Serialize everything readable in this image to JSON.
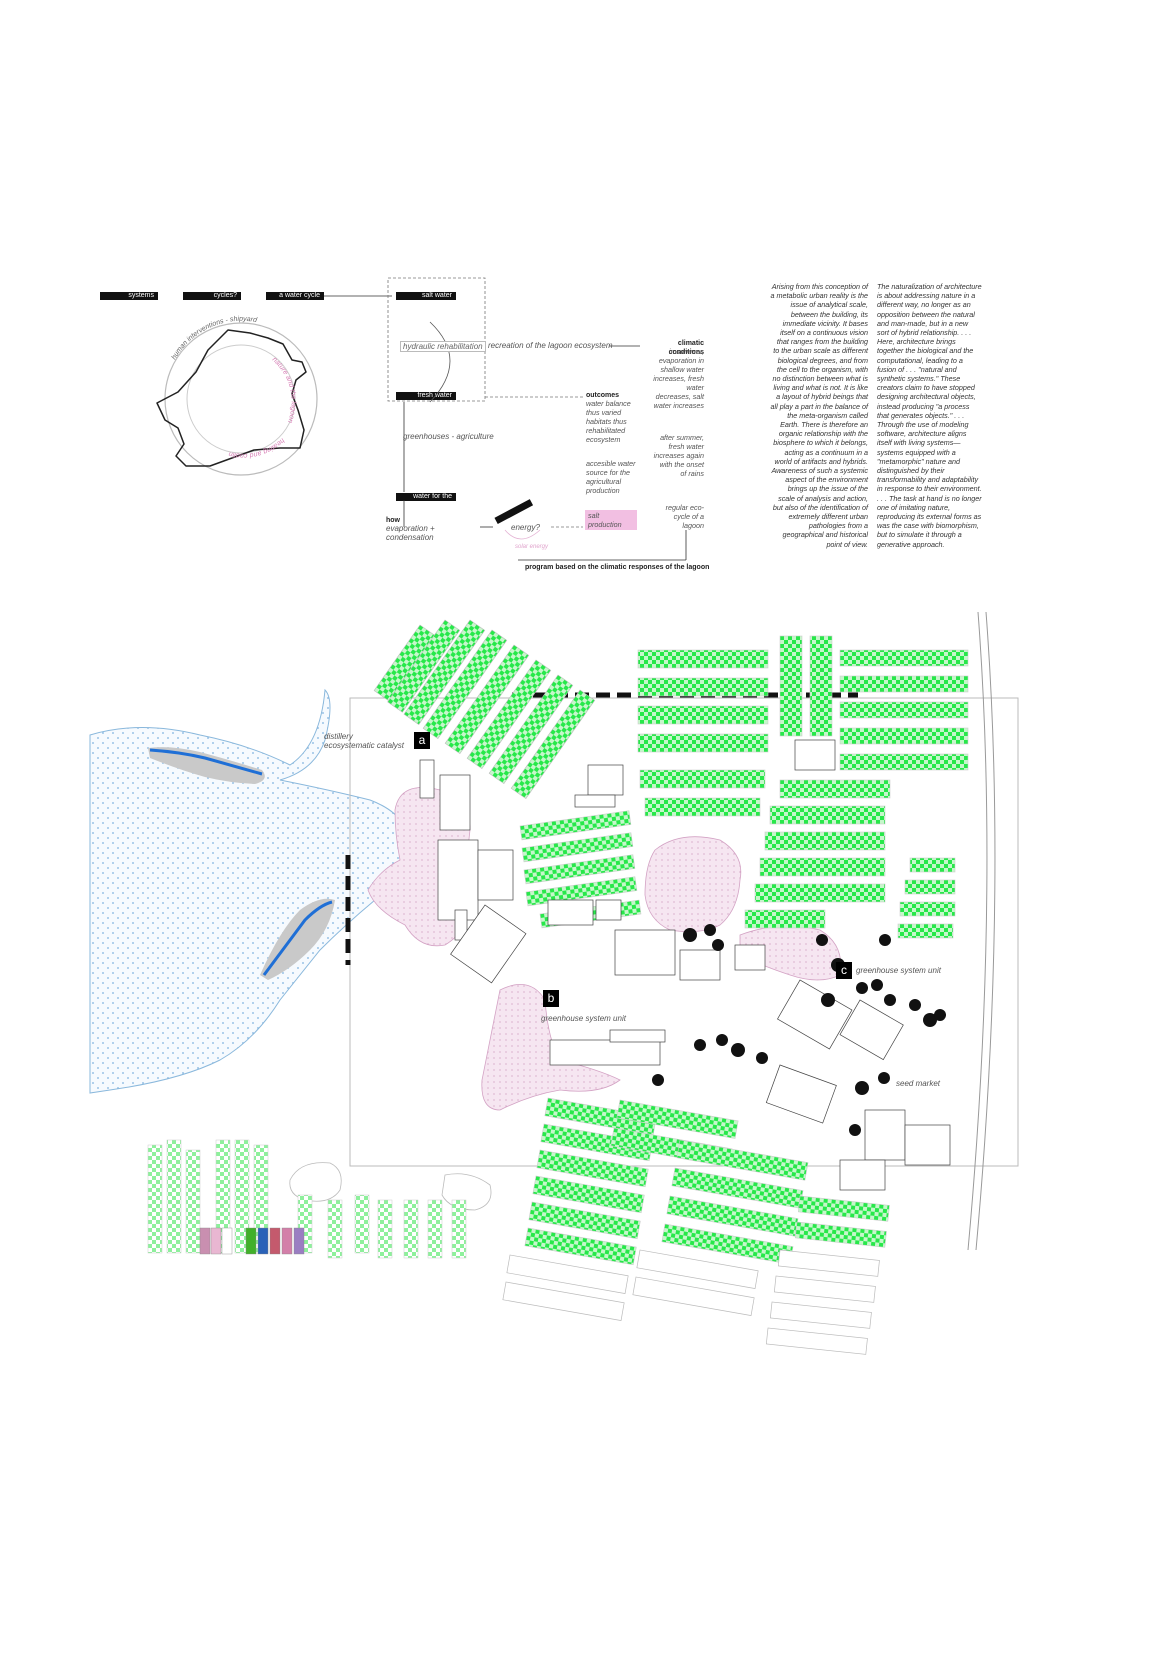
{
  "top_labels": {
    "systems": "systems",
    "cycles": "cycles?",
    "water_cycle": "a water cycle",
    "salt_water": "salt water",
    "fresh_water": "fresh water",
    "water_for_use": "water for the use"
  },
  "cycle_diagram": {
    "outer_ring_label": "human interventions - shipyard",
    "inner_ring_label": "nature and the lagoon",
    "inner_ring_label_2": "heating and cooling"
  },
  "flow": {
    "hydraulic": "hydraulic rehabilitation",
    "recreation": "recreation of the lagoon ecosystem",
    "greenhouses": "greenhouses - agriculture",
    "how_title": "how",
    "how_body": "evaporation + condensation",
    "energy": "energy?",
    "pink_arc": "solar energy",
    "outcomes_title": "outcomes",
    "outcomes_1": "water balance thus varied habitats thus rehabilitated ecosystem",
    "outcomes_2": "accesible water source for the agricultural production",
    "outcomes_3": "salt production",
    "climatic_title": "climatic conditions",
    "climatic_1": "in summer, evaporation in shallow water increases, fresh water decreases, salt water increases",
    "climatic_2": "after summer, fresh water increases again with the onset of rains",
    "climatic_3": "regular eco-cycle of a lagoon",
    "program": "program based on the climatic responses of the lagoon"
  },
  "text_columns": {
    "left": "Arising from this conception of a metabolic urban reality is the issue of analytical scale, between the building, its immediate vicinity. It bases itself on a continuous vision that ranges from the building to the urban scale as different biological degrees, and from the cell to the organism, with no distinction between what is living and what is not. It is like a layout of hybrid beings that all play a part in the balance of the meta-organism called Earth. There is therefore an organic relationship with the biosphere to which it belongs, acting as a continuum in a world of artifacts and hybrids. Awareness of such a systemic aspect of the environment brings up the issue of the scale of analysis and action, but also of the identification of extremely different urban pathologies from a geographical and historical point of view.",
    "right": "The naturalization of architecture is about addressing nature in a different way, no longer as an opposition between the natural and man-made, but in a new sort of hybrid relationship. . . . Here, architecture brings together the biological and the computational, leading to a fusion of . . . \"natural and synthetic systems.\" These creators claim to have stopped designing architectural objects, instead producing \"a process that generates objects.\" . . . Through the use of modeling software, architecture aligns itself with living systems—systems equipped with a \"metamorphic\" nature and distinguished by their transformability and adaptability in response to their environment. . . . The task at hand is no longer one of imitating nature, reproducing its external forms as was the case with biomorphism, but to simulate it through a generative approach."
  },
  "plan": {
    "distillery": "distillery",
    "catalyst": "ecosystematic catalyst",
    "tag_a": "a",
    "tag_b": "b",
    "tag_c": "c",
    "greenhouse_b": "greenhouse system unit",
    "greenhouse_c": "greenhouse system unit",
    "seed_market": "seed market"
  },
  "colors": {
    "greenhouse": "#27e84a",
    "lagoon": "#bcd8ee",
    "pink": "#d7a2c8",
    "water_blue": "#1f6fd6"
  },
  "swatches": [
    "#c98fb0",
    "#e9b7d2",
    "#ffffff",
    "#41b02a",
    "#2a62b8",
    "#c45a6d",
    "#d37fa9",
    "#9a7ec2"
  ]
}
